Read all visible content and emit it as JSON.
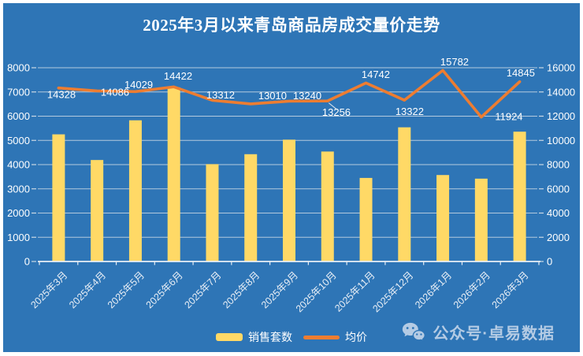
{
  "title": "2025年3月以来青岛商品房成交量价走势",
  "chart_data": {
    "type": "combo-bar-line",
    "title": "2025年3月以来青岛商品房成交量价走势",
    "categories": [
      "2025年3月",
      "2025年4月",
      "2025年5月",
      "2025年6月",
      "2025年7月",
      "2025年8月",
      "2025年9月",
      "2025年10月",
      "2025年11月",
      "2025年12月",
      "2026年1月",
      "2026年2月",
      "2026年3月"
    ],
    "series": [
      {
        "name": "销售套数",
        "type": "bar",
        "axis": "left",
        "color": "#ffd966",
        "values": [
          5250,
          4190,
          5830,
          7190,
          4020,
          4430,
          5030,
          4540,
          3450,
          5540,
          3570,
          3420,
          5360
        ]
      },
      {
        "name": "均价",
        "type": "line",
        "axis": "right",
        "color": "#ed7d31",
        "data_labels": true,
        "values": [
          14328,
          14086,
          14029,
          14422,
          13312,
          13010,
          13240,
          13256,
          14742,
          13322,
          15782,
          11924,
          14845
        ]
      }
    ],
    "left_axis": {
      "min": 0,
      "max": 8000,
      "step": 1000,
      "tick_labels": [
        "8000",
        "7000",
        "6000",
        "5000",
        "4000",
        "3000",
        "2000",
        "1000",
        "0"
      ]
    },
    "right_axis": {
      "min": 0,
      "max": 16000,
      "step": 2000,
      "tick_labels": [
        "16000",
        "14000",
        "12000",
        "10000",
        "8000",
        "6000",
        "4000",
        "2000",
        "0"
      ]
    },
    "grid": true,
    "legend_position": "bottom",
    "label_positions": [
      "below",
      "below-right",
      "above",
      "above",
      "above",
      "above-right",
      "above-right",
      "below-leader",
      "above",
      "below",
      "above",
      "right",
      "above"
    ]
  },
  "legend": {
    "items": [
      {
        "label": "销售套数",
        "swatch": "bar",
        "color": "#ffd966"
      },
      {
        "label": "均价",
        "swatch": "line",
        "color": "#ed7d31"
      }
    ]
  },
  "watermark": {
    "icon": "wechat-icon",
    "text": "公众号·卓易数据"
  },
  "colors": {
    "background": "#2e75b6",
    "frame": "#ffffff",
    "title_text": "#ffffff",
    "axis_text": "#ffffff",
    "gridline": "#ccd9e6",
    "bar": "#ffd966",
    "line": "#ed7d31",
    "watermark": "#b4cbe4"
  }
}
